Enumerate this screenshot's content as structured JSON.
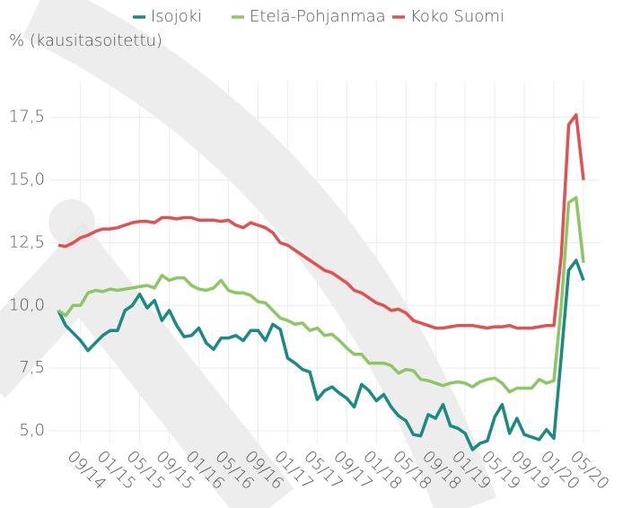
{
  "chart_data": {
    "type": "line",
    "y_label": "% (kausitasoitettu)",
    "categories": [
      null,
      null,
      null,
      "09/14",
      null,
      null,
      null,
      "01/15",
      null,
      null,
      null,
      "05/15",
      null,
      null,
      null,
      "09/15",
      null,
      null,
      null,
      "01/16",
      null,
      null,
      null,
      "05/16",
      null,
      null,
      null,
      "09/16",
      null,
      null,
      null,
      "01/17",
      null,
      null,
      null,
      "05/17",
      null,
      null,
      null,
      "09/17",
      null,
      null,
      null,
      "01/18",
      null,
      null,
      null,
      "05/18",
      null,
      null,
      null,
      "09/18",
      null,
      null,
      null,
      "01/19",
      null,
      null,
      null,
      "05/19",
      null,
      null,
      null,
      "09/19",
      null,
      null,
      null,
      "01/20",
      null,
      null,
      null,
      "05/20"
    ],
    "series": [
      {
        "name": "Isojoki",
        "color": "#1b8a80",
        "values": [
          9.8,
          9.2,
          8.9,
          8.6,
          8.2,
          8.5,
          8.8,
          9.0,
          9.0,
          9.8,
          10.0,
          10.45,
          9.9,
          10.2,
          9.4,
          9.8,
          9.2,
          8.75,
          8.8,
          9.1,
          8.5,
          8.25,
          8.7,
          8.7,
          8.8,
          8.6,
          9.0,
          9.0,
          8.6,
          9.25,
          9.05,
          7.9,
          7.7,
          7.45,
          7.35,
          6.25,
          6.6,
          6.75,
          6.5,
          6.3,
          5.95,
          6.85,
          6.6,
          6.2,
          6.45,
          5.95,
          5.6,
          5.4,
          4.85,
          4.8,
          5.65,
          5.5,
          6.05,
          5.2,
          5.1,
          4.9,
          4.25,
          4.5,
          4.6,
          5.55,
          6.05,
          4.9,
          5.5,
          4.85,
          4.75,
          4.65,
          5.05,
          4.7,
          8.0,
          11.4,
          11.8,
          11.0
        ]
      },
      {
        "name": "Etelä-Pohjanmaa",
        "color": "#8cc665",
        "values": [
          9.8,
          9.6,
          10.0,
          10.0,
          10.5,
          10.6,
          10.55,
          10.65,
          10.6,
          10.65,
          10.7,
          10.75,
          10.8,
          10.7,
          11.2,
          11.0,
          11.1,
          11.1,
          10.8,
          10.65,
          10.6,
          10.7,
          11.0,
          10.6,
          10.5,
          10.5,
          10.4,
          10.15,
          10.1,
          9.8,
          9.5,
          9.4,
          9.25,
          9.3,
          9.0,
          9.1,
          8.8,
          8.85,
          8.6,
          8.3,
          8.05,
          8.05,
          7.7,
          7.7,
          7.7,
          7.6,
          7.3,
          7.45,
          7.4,
          7.05,
          7.0,
          6.9,
          6.8,
          6.9,
          6.95,
          6.9,
          6.75,
          6.95,
          7.05,
          7.1,
          6.9,
          6.55,
          6.7,
          6.7,
          6.7,
          7.05,
          6.9,
          7.0,
          10.0,
          14.1,
          14.3,
          11.7
        ]
      },
      {
        "name": "Koko Suomi",
        "color": "#e05252",
        "values": [
          12.4,
          12.35,
          12.5,
          12.7,
          12.8,
          12.95,
          13.05,
          13.05,
          13.1,
          13.2,
          13.3,
          13.35,
          13.35,
          13.3,
          13.5,
          13.5,
          13.45,
          13.5,
          13.5,
          13.4,
          13.4,
          13.4,
          13.35,
          13.4,
          13.2,
          13.1,
          13.3,
          13.2,
          13.1,
          12.9,
          12.5,
          12.4,
          12.2,
          12.0,
          11.8,
          11.6,
          11.4,
          11.3,
          11.1,
          10.9,
          10.6,
          10.5,
          10.3,
          10.1,
          10.0,
          9.8,
          9.85,
          9.7,
          9.4,
          9.3,
          9.2,
          9.1,
          9.1,
          9.15,
          9.2,
          9.2,
          9.2,
          9.15,
          9.1,
          9.15,
          9.15,
          9.2,
          9.1,
          9.1,
          9.1,
          9.15,
          9.2,
          9.2,
          12.0,
          17.2,
          17.6,
          15.0
        ]
      }
    ],
    "ylim": [
      4.5,
      18.6
    ],
    "yticks": [
      {
        "value": 5,
        "label": "5,0"
      },
      {
        "value": 7.5,
        "label": "7,5"
      },
      {
        "value": 10,
        "label": "10,0"
      },
      {
        "value": 12.5,
        "label": "12,5"
      },
      {
        "value": 15,
        "label": "15,0"
      },
      {
        "value": 17.5,
        "label": "17,5"
      }
    ],
    "grid": true
  }
}
